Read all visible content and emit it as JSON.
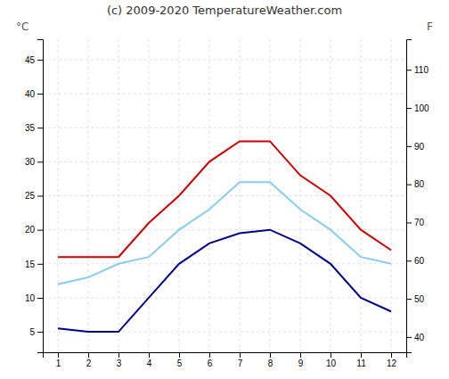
{
  "chart_data": {
    "type": "line",
    "title": "(c) 2009-2020 TemperatureWeather.com",
    "ylabel": "°C",
    "y2label": "F",
    "x": [
      1,
      2,
      3,
      4,
      5,
      6,
      7,
      8,
      9,
      10,
      11,
      12
    ],
    "series": [
      {
        "color": "#cc0000",
        "values": [
          16,
          16,
          16,
          21,
          25,
          30,
          33,
          33,
          28,
          25,
          20,
          17
        ]
      },
      {
        "color": "#87ceeb",
        "values": [
          12,
          13,
          15,
          16,
          20,
          23,
          27,
          27,
          23,
          20,
          16,
          15
        ]
      },
      {
        "color": "#00008b",
        "values": [
          5.5,
          5,
          5,
          10,
          15,
          18,
          19.5,
          20,
          18,
          15,
          10,
          8
        ]
      }
    ],
    "xlim": [
      0.5,
      12.5
    ],
    "xticks": [
      1,
      2,
      3,
      4,
      5,
      6,
      7,
      8,
      9,
      10,
      11,
      12
    ],
    "ylim": [
      2,
      48
    ],
    "yticks": [
      5,
      10,
      15,
      20,
      25,
      30,
      35,
      40,
      45
    ],
    "y2lim": [
      36,
      118
    ],
    "y2ticks": [
      40,
      50,
      60,
      70,
      80,
      90,
      100,
      110
    ],
    "grid": true
  }
}
